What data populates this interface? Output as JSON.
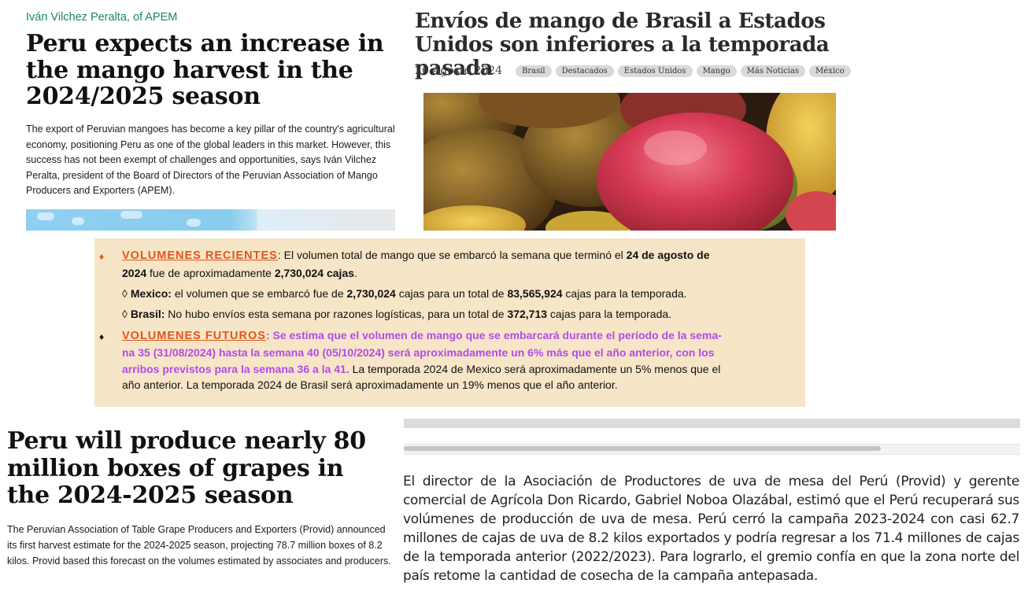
{
  "panel1": {
    "byline": "Iván Vilchez Peralta, of APEM",
    "headline": "Peru expects an increase in the mango harvest in the 2024/2025 season",
    "body": "The export of Peruvian mangoes has become a key pillar of the country's agricultural economy, positioning Peru as one of the global leaders in this market. However, this success has not been exempt of challenges and opportunities, says Iván Vilchez Peralta, president of the Board of Directors of the Peruvian Association of Mango Producers and Exporters (APEM)."
  },
  "panel2": {
    "headline": "Envíos de mango de Brasil a Estados Unidos son inferiores a la temporada pasada",
    "date": "26 Agosto 2024",
    "tags": [
      "Brasil",
      "Destacados",
      "Estados Unidos",
      "Mango",
      "Más Noticias",
      "México"
    ]
  },
  "panel3": {
    "bullet_diamond": "♦",
    "sub_bullet": "◊",
    "recientes": {
      "heading": "VOLUMENES RECIENTES",
      "l1_a": ": El volumen total de mango que se embarcó la semana que terminó el ",
      "l1_b": "24 de agosto de",
      "l2_a": "2024",
      "l2_b": " fue de aproximadamente ",
      "l2_c": "2,730,024 cajas",
      "l2_d": "."
    },
    "mexico": {
      "label": "Mexico:",
      "t1": " el volumen que se embarcó fue de ",
      "v1": "2,730,024",
      "t2": " cajas para un total de ",
      "v2": "83,565,924",
      "t3": " cajas para la temporada."
    },
    "brasil": {
      "label": "Brasil:",
      "t1": " No hubo envíos esta semana por razones logísticas, para un total de ",
      "v1": "372,713",
      "t2": " cajas para la temporada."
    },
    "futuros": {
      "heading": "VOLUMENES FUTUROS",
      "p1": ": Se estima que el volumen de mango que se embarcará durante el período de la sema-",
      "p2": "na 35 (31/08/2024) hasta la semana 40 (05/10/2024) será aproximadamente un 6% más que el año anterior, con los",
      "p3": "arribos previstos para la semana 36 a la 41.",
      "n3": " La temporada 2024 de Mexico será aproximadamente un 5% menos que el",
      "n4": "año anterior. La temporada 2024 de Brasil  será aproximadamente un 19% menos que el año anterior."
    }
  },
  "panel4": {
    "headline": "Peru will produce nearly 80 million boxes of grapes in the 2024-2025 season",
    "body": "The Peruvian Association of Table Grape Producers and Exporters (Provid) announced its first harvest estimate for the 2024-2025 season, projecting 78.7 million boxes of 8.2 kilos. Provid based this forecast on the volumes estimated by associates and producers."
  },
  "panel5": {
    "body": "El director de la Asociación de Productores de uva de mesa del Perú (Provid) y gerente comercial de Agrícola Don Ricardo, Gabriel Noboa Olazábal, estimó que el Perú recuperará sus volúmenes de producción de uva de mesa. Perú cerró la campaña 2023-2024 con casi 62.7 millones de cajas de uva de 8.2 kilos exportados y podría regresar a los 71.4 millones de cajas de la temporada anterior (2022/2023). Para lograrlo, el gremio confía en que la zona norte del país retome la cantidad de cosecha de la campaña antepasada."
  },
  "colors": {
    "byline_green": "#16866f",
    "orange_heading": "#e2561a",
    "purple_forecast": "#b14ce8",
    "box_background": "#f7e5c7",
    "tag_background": "#d9d9dc"
  }
}
